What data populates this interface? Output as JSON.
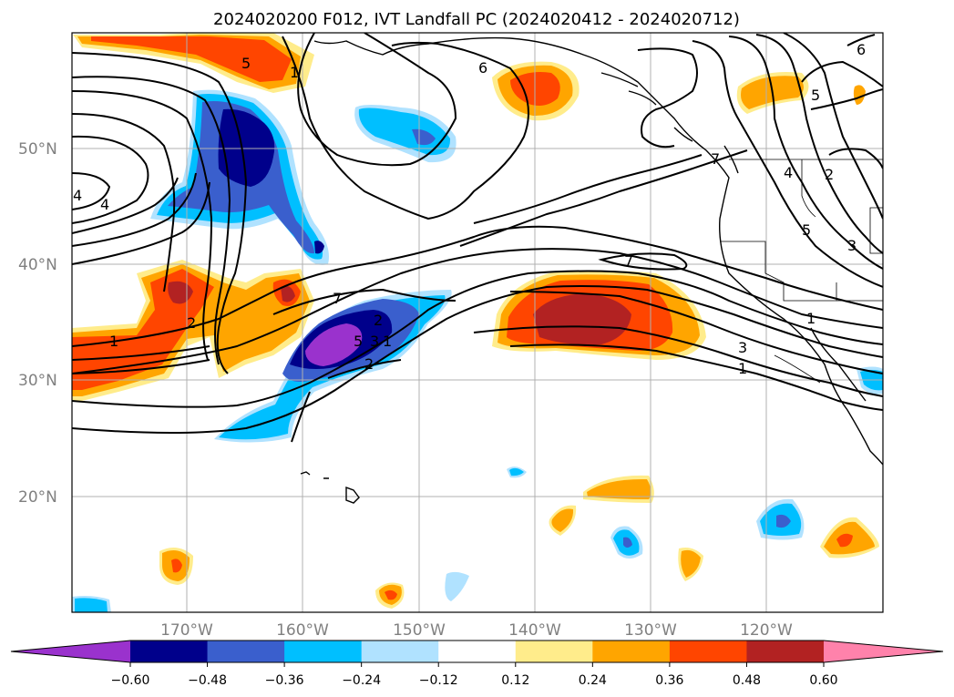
{
  "title": "2024020200 F012, IVT Landfall PC (2024020412 - 2024020712)",
  "axes": {
    "lon_labels": [
      "170°W",
      "160°W",
      "150°W",
      "140°W",
      "130°W",
      "120°W"
    ],
    "lat_labels": [
      "50°N",
      "40°N",
      "30°N",
      "20°N"
    ]
  },
  "colorbar": {
    "levels": [
      "−0.60",
      "−0.48",
      "−0.36",
      "−0.24",
      "−0.12",
      "0.12",
      "0.24",
      "0.36",
      "0.48",
      "0.60"
    ],
    "colors": [
      "#9a32cd",
      "#00008b",
      "#3a5fcd",
      "#00bfff",
      "#b0e2ff",
      "#ffffff",
      "#ffec8b",
      "#ffa500",
      "#ff4500",
      "#b22222",
      "#ff82ab"
    ]
  },
  "contour_labels": [
    "6",
    "5",
    "4",
    "2",
    "1",
    "3",
    "1",
    "7",
    "2",
    "5",
    "3",
    "1",
    "2",
    "1",
    "2",
    "4",
    "5",
    "7",
    "3",
    "1",
    "4",
    "5",
    "6",
    "7"
  ]
}
